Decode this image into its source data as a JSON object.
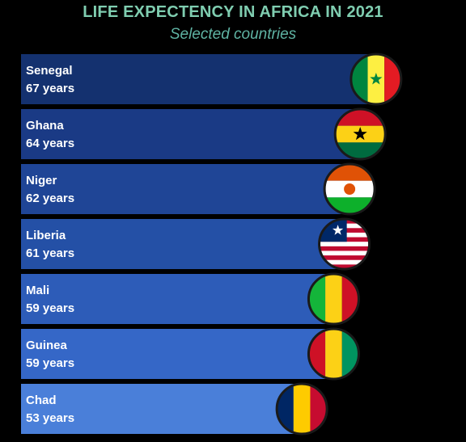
{
  "chart_data": {
    "type": "bar",
    "orientation": "horizontal",
    "title": "LIFE EXPECTENCY IN AFRICA IN 2021",
    "subtitle": "Selected countries",
    "value_suffix": " years",
    "categories": [
      "Senegal",
      "Ghana",
      "Niger",
      "Liberia",
      "Mali",
      "Guinea",
      "Chad"
    ],
    "values": [
      67,
      64,
      62,
      61,
      59,
      59,
      53
    ],
    "flag_icons": [
      "senegal-flag-icon",
      "ghana-flag-icon",
      "niger-flag-icon",
      "liberia-flag-icon",
      "mali-flag-icon",
      "guinea-flag-icon",
      "chad-flag-icon"
    ],
    "bar_colors": [
      "#14316f",
      "#1a3a85",
      "#1f4596",
      "#2450a6",
      "#2d5cb8",
      "#3567c7",
      "#4a7fd9"
    ],
    "xlim": [
      0,
      80
    ],
    "grid": false,
    "legend": "none"
  },
  "colors": {
    "background": "#000000",
    "title": "#7fcdb0",
    "subtitle": "#5fb3a3"
  }
}
